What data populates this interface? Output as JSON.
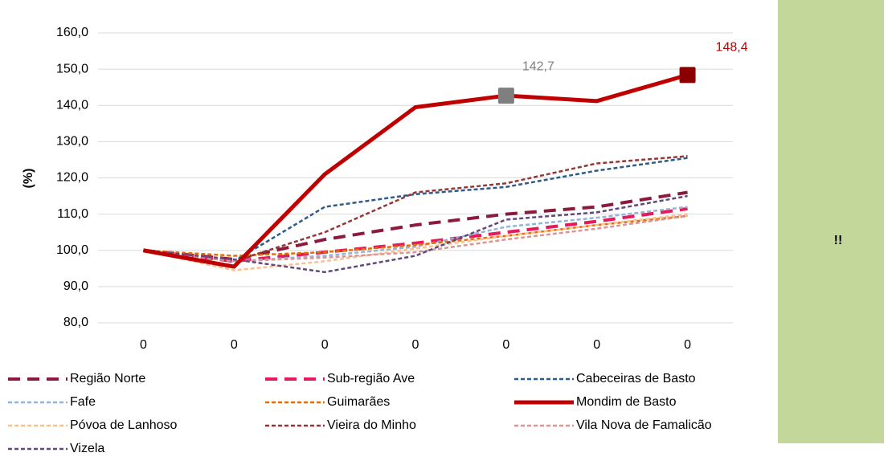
{
  "chart_data": {
    "type": "line",
    "ylabel": "(%)",
    "categories": [
      "0",
      "0",
      "0",
      "0",
      "0",
      "0",
      "0"
    ],
    "ylim": [
      80,
      160
    ],
    "yticks": [
      {
        "value": 80,
        "label": "80,0"
      },
      {
        "value": 90,
        "label": "90,0"
      },
      {
        "value": 100,
        "label": "100,0"
      },
      {
        "value": 110,
        "label": "110,0"
      },
      {
        "value": 120,
        "label": "120,0"
      },
      {
        "value": 130,
        "label": "130,0"
      },
      {
        "value": 140,
        "label": "140,0"
      },
      {
        "value": 150,
        "label": "150,0"
      },
      {
        "value": 160,
        "label": "160,0"
      }
    ],
    "grid": true,
    "legend": "bottom",
    "series": [
      {
        "name": "Região Norte",
        "color": "#8b1a3c",
        "line_style": "long-dash",
        "values": [
          100,
          97.5,
          103,
          107,
          110,
          112,
          116
        ]
      },
      {
        "name": "Sub-região Ave",
        "color": "#e6195a",
        "line_style": "long-dash",
        "values": [
          100,
          97,
          99.5,
          102,
          105,
          108,
          111.5
        ]
      },
      {
        "name": "Cabeceiras de Basto",
        "color": "#2e5b8a",
        "line_style": "dash",
        "values": [
          100,
          97,
          112,
          115.5,
          117.5,
          122,
          125.5
        ]
      },
      {
        "name": "Fafe",
        "color": "#95b3d7",
        "line_style": "dash",
        "values": [
          100,
          97,
          98.5,
          101,
          106.5,
          109,
          112
        ]
      },
      {
        "name": "Guimarães",
        "color": "#e36c0a",
        "line_style": "dash",
        "values": [
          100,
          98.5,
          99.5,
          101.5,
          104,
          107,
          109.5
        ]
      },
      {
        "name": "Mondim de Basto",
        "color": "#c00000",
        "line_style": "solid",
        "values": [
          100,
          95.5,
          121,
          139.5,
          142.7,
          141.2,
          148.4
        ],
        "value_labels": [
          null,
          null,
          null,
          null,
          "142,7",
          null,
          "148,4"
        ],
        "marker_colors": [
          null,
          null,
          null,
          null,
          "#7f7f7f",
          null,
          "#8b0000"
        ]
      },
      {
        "name": "Póvoa de Lanhoso",
        "color": "#fac090",
        "line_style": "dash",
        "values": [
          100,
          94.5,
          97,
          100.5,
          104,
          107,
          110
        ]
      },
      {
        "name": "Vieira do Minho",
        "color": "#953735",
        "line_style": "dash",
        "values": [
          100,
          97,
          105,
          116,
          118.5,
          124,
          126
        ]
      },
      {
        "name": "Vila Nova de Famalicão",
        "color": "#d99694",
        "line_style": "dash",
        "values": [
          100,
          97,
          98,
          99.5,
          103,
          106,
          109.5
        ]
      },
      {
        "name": "Vizela",
        "color": "#604a7b",
        "line_style": "dash",
        "values": [
          100,
          97.5,
          94,
          98.5,
          108.5,
          110.5,
          115
        ]
      }
    ]
  },
  "side_panel": {
    "text": "!!"
  }
}
